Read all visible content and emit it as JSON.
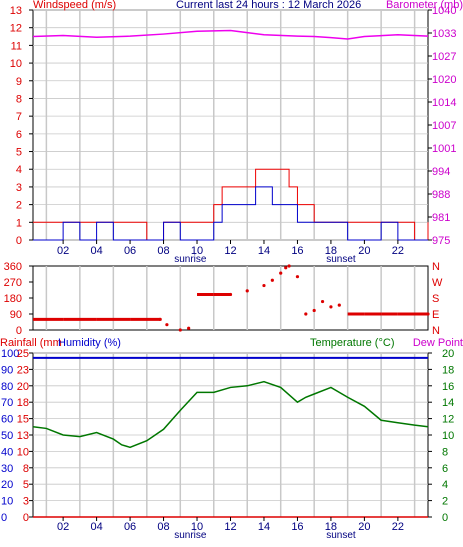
{
  "header": {
    "left_title": "Windspeed (m/s)",
    "center_title": "Current last 24 hours : 12 March 2026",
    "right_title": "Barometer (mb)"
  },
  "x_axis": {
    "tick_labels": [
      "02",
      "04",
      "06",
      "08",
      "10",
      "12",
      "14",
      "16",
      "18",
      "20",
      "22"
    ],
    "tick_hours": [
      2,
      4,
      6,
      8,
      10,
      12,
      14,
      16,
      18,
      20,
      22
    ],
    "x_range_hours": [
      0.2,
      23.8
    ],
    "sunrise_label": "sunrise",
    "sunrise_hour": 9.6,
    "sunset_label": "sunset",
    "sunset_hour": 18.6,
    "grid_hours": [
      1,
      3,
      5,
      7,
      9,
      11,
      13,
      15,
      17,
      19,
      21,
      23
    ]
  },
  "wind_panel": {
    "y_left_ticks": [
      "0",
      "1",
      "2",
      "3",
      "4",
      "5",
      "6",
      "7",
      "8",
      "9",
      "10",
      "11",
      "12",
      "13"
    ],
    "y_left_range": [
      0,
      13
    ],
    "y_right_ticks": [
      "975",
      "981",
      "988",
      "994",
      "1001",
      "1007",
      "1014",
      "1020",
      "1027",
      "1033",
      "1040"
    ],
    "y_right_range": [
      975,
      1040
    ],
    "colors": {
      "gust": "#ee0000",
      "speed": "#0000cc",
      "barometer": "#ee00ee",
      "grid": "#c8c8c8"
    }
  },
  "direction_panel": {
    "y_left_ticks": [
      "0",
      "90",
      "180",
      "270",
      "360"
    ],
    "y_right_ticks": [
      "N",
      "E",
      "S",
      "W",
      "N"
    ],
    "y_range": [
      0,
      360
    ],
    "color": "#dd0000"
  },
  "temp_panel": {
    "left_title_rain": "Rainfall (mm",
    "left_title_humidity": "Humidity (%)",
    "right_title_temp": "Temperature (°C)",
    "right_title_dew": "Dew Point",
    "y_humidity_ticks": [
      "0",
      "10",
      "20",
      "30",
      "40",
      "50",
      "60",
      "70",
      "80",
      "90",
      "100"
    ],
    "y_rain_ticks": [
      "0",
      "3",
      "5",
      "8",
      "10",
      "13",
      "15",
      "18",
      "20",
      "23",
      "25"
    ],
    "y_temp_ticks": [
      "0",
      "2",
      "4",
      "6",
      "8",
      "10",
      "12",
      "14",
      "16",
      "18",
      "20"
    ],
    "y_temp_range": [
      0,
      20
    ],
    "colors": {
      "rain": "#dd0000",
      "humidity": "#0000cc",
      "temp": "#007700",
      "dew": "#cc00cc"
    }
  },
  "chart_data": [
    {
      "type": "line",
      "title": "Windspeed (m/s)",
      "xlabel": "",
      "ylabel": "Windspeed (m/s)",
      "ylim": [
        0,
        13
      ],
      "x": [
        0.2,
        1,
        2,
        3,
        4,
        5,
        6,
        7,
        8,
        9,
        10,
        11,
        11.5,
        12,
        12.5,
        13,
        13.5,
        14,
        14.5,
        15,
        15.5,
        16,
        17,
        18,
        19,
        20,
        21,
        22,
        23,
        23.8
      ],
      "series": [
        {
          "name": "gust",
          "values": [
            1,
            1,
            1,
            1,
            1,
            1,
            1,
            0,
            1,
            1,
            1,
            2,
            3,
            3,
            3,
            3,
            4,
            4,
            4,
            4,
            3,
            2,
            1,
            1,
            1,
            1,
            1,
            1,
            0,
            1
          ]
        },
        {
          "name": "speed",
          "values": [
            0,
            0,
            1,
            0,
            1,
            0,
            0,
            0,
            1,
            0,
            0,
            1,
            2,
            2,
            2,
            2,
            3,
            3,
            2,
            2,
            2,
            1,
            1,
            1,
            0,
            0,
            1,
            0,
            0,
            0
          ]
        }
      ]
    },
    {
      "type": "line",
      "title": "Barometer (mb)",
      "ylabel": "Barometer (mb)",
      "ylim": [
        975,
        1040
      ],
      "x": [
        0.2,
        2,
        4,
        6,
        8,
        10,
        12,
        13,
        14,
        16,
        17,
        18,
        19,
        20,
        22,
        23.8
      ],
      "series": [
        {
          "name": "barometer",
          "values": [
            1032.5,
            1032.8,
            1032.3,
            1032.6,
            1033.2,
            1034,
            1034.2,
            1033.6,
            1033,
            1032.6,
            1032.5,
            1032.2,
            1031.8,
            1032.5,
            1033,
            1032.6
          ]
        }
      ]
    },
    {
      "type": "scatter",
      "title": "Wind direction",
      "ylim": [
        0,
        360
      ],
      "x": [
        0.2,
        2,
        4,
        6,
        7.8,
        8.2,
        9,
        9.5,
        10,
        11,
        12,
        13,
        14,
        14.5,
        15,
        15.3,
        15.5,
        16,
        16.5,
        17,
        17.5,
        18,
        18.5,
        19,
        20,
        21,
        22,
        23.8
      ],
      "series": [
        {
          "name": "direction",
          "values": [
            60,
            60,
            60,
            60,
            60,
            30,
            0,
            10,
            200,
            200,
            200,
            220,
            250,
            280,
            320,
            350,
            360,
            300,
            90,
            110,
            160,
            130,
            140,
            90,
            90,
            90,
            90,
            90
          ]
        }
      ]
    },
    {
      "type": "line",
      "title": "Humidity (%)",
      "ylabel": "Humidity (%)",
      "ylim": [
        0,
        100
      ],
      "x": [
        0.2,
        23.8
      ],
      "series": [
        {
          "name": "humidity",
          "values": [
            97,
            97
          ]
        }
      ]
    },
    {
      "type": "line",
      "title": "Temperature (°C)",
      "ylabel": "Temperature (°C)",
      "ylim": [
        0,
        20
      ],
      "x": [
        0.2,
        1,
        2,
        3,
        4,
        5,
        5.5,
        6,
        7,
        8,
        9,
        10,
        11,
        12,
        13,
        14,
        15,
        16,
        16.5,
        17,
        18,
        19,
        20,
        21,
        22,
        23,
        23.8
      ],
      "series": [
        {
          "name": "temperature",
          "values": [
            11,
            10.8,
            10,
            9.8,
            10.3,
            9.5,
            8.8,
            8.5,
            9.3,
            10.7,
            13,
            15.2,
            15.2,
            15.8,
            16,
            16.5,
            15.8,
            14,
            14.6,
            15,
            15.8,
            14.6,
            13.5,
            11.8,
            11.5,
            11.2,
            11
          ]
        }
      ]
    },
    {
      "type": "line",
      "title": "Rainfall (mm",
      "ylabel": "Rainfall (mm",
      "ylim": [
        0,
        25
      ],
      "x": [
        0.2,
        23.8
      ],
      "series": [
        {
          "name": "rainfall",
          "values": [
            0,
            0
          ]
        }
      ]
    }
  ]
}
